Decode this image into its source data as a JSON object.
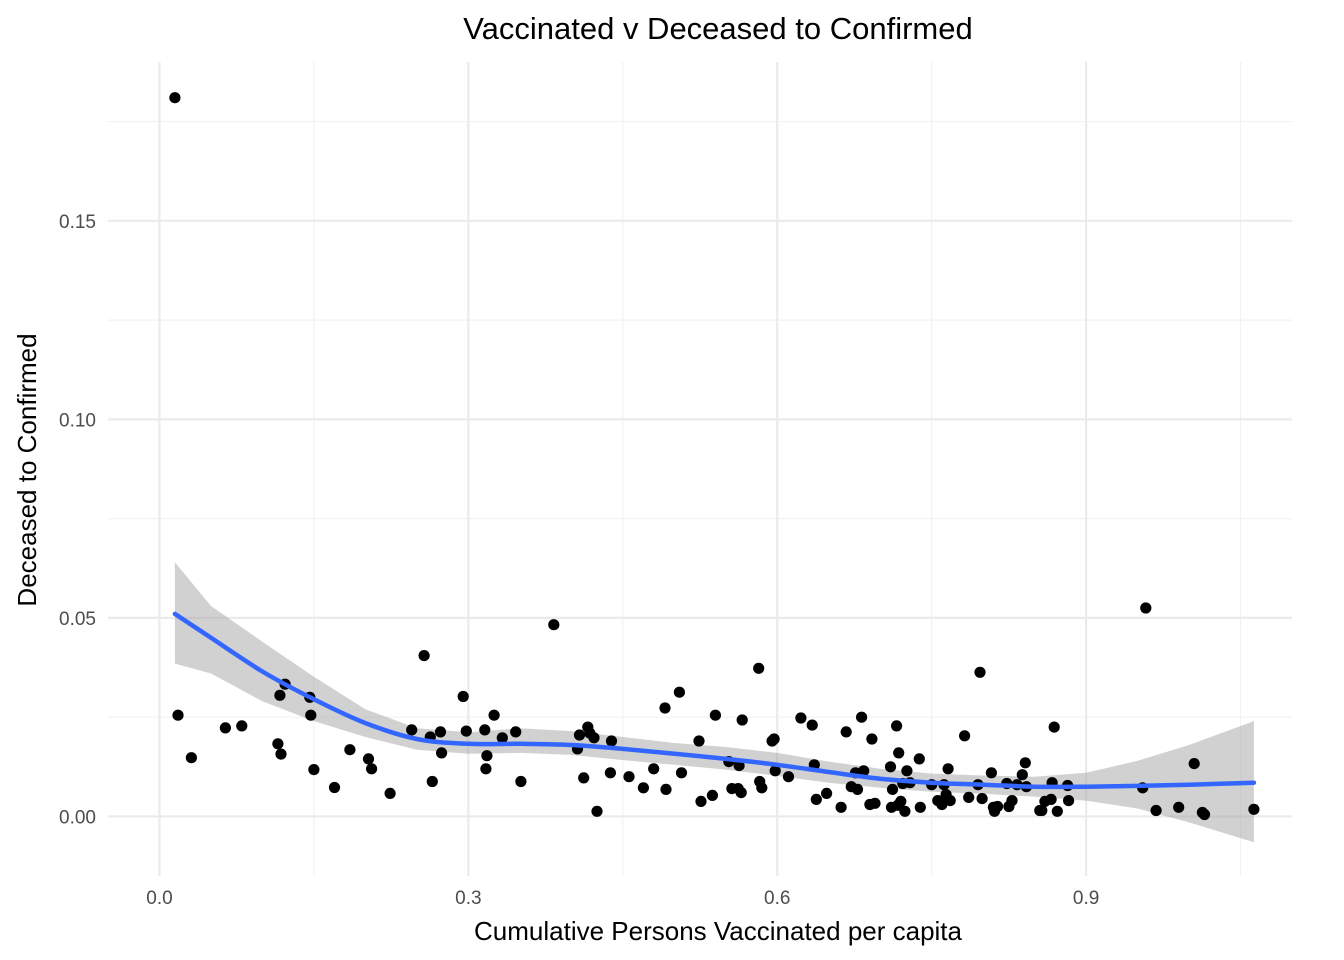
{
  "chart_data": {
    "type": "scatter",
    "title": "Vaccinated v Deceased to Confirmed",
    "xlabel": "Cumulative Persons Vaccinated per capita",
    "ylabel": "Deceased to Confirmed",
    "xlim": [
      -0.05,
      1.1
    ],
    "ylim": [
      -0.015,
      0.19
    ],
    "x_ticks": [
      0.0,
      0.3,
      0.6,
      0.9
    ],
    "x_tick_labels": [
      "0.0",
      "0.3",
      "0.6",
      "0.9"
    ],
    "y_ticks": [
      0.0,
      0.05,
      0.1,
      0.15
    ],
    "y_tick_labels": [
      "0.00",
      "0.05",
      "0.10",
      "0.15"
    ],
    "grid": true,
    "legend": "none",
    "colors": {
      "points": "#000000",
      "smooth": "#3366ff",
      "band": "#999999"
    },
    "series": [
      {
        "values": [
          [
            0.015,
            0.181
          ],
          [
            0.018,
            0.0255
          ],
          [
            0.031,
            0.0148
          ],
          [
            0.064,
            0.0223
          ],
          [
            0.08,
            0.0228
          ],
          [
            0.115,
            0.0183
          ],
          [
            0.117,
            0.0305
          ],
          [
            0.118,
            0.0157
          ],
          [
            0.122,
            0.0333
          ],
          [
            0.146,
            0.03
          ],
          [
            0.147,
            0.0255
          ],
          [
            0.15,
            0.0118
          ],
          [
            0.17,
            0.0073
          ],
          [
            0.185,
            0.0168
          ],
          [
            0.203,
            0.0145
          ],
          [
            0.206,
            0.012
          ],
          [
            0.224,
            0.0058
          ],
          [
            0.245,
            0.0218
          ],
          [
            0.257,
            0.0405
          ],
          [
            0.263,
            0.02
          ],
          [
            0.265,
            0.0088
          ],
          [
            0.273,
            0.0213
          ],
          [
            0.274,
            0.016
          ],
          [
            0.295,
            0.0302
          ],
          [
            0.298,
            0.0215
          ],
          [
            0.316,
            0.0218
          ],
          [
            0.317,
            0.012
          ],
          [
            0.318,
            0.0153
          ],
          [
            0.325,
            0.0255
          ],
          [
            0.333,
            0.0198
          ],
          [
            0.346,
            0.0213
          ],
          [
            0.351,
            0.0088
          ],
          [
            0.383,
            0.0483
          ],
          [
            0.406,
            0.017
          ],
          [
            0.408,
            0.0205
          ],
          [
            0.412,
            0.0097
          ],
          [
            0.416,
            0.0225
          ],
          [
            0.418,
            0.021
          ],
          [
            0.422,
            0.0198
          ],
          [
            0.425,
            0.0013
          ],
          [
            0.438,
            0.011
          ],
          [
            0.439,
            0.019
          ],
          [
            0.456,
            0.01
          ],
          [
            0.47,
            0.0072
          ],
          [
            0.48,
            0.012
          ],
          [
            0.491,
            0.0273
          ],
          [
            0.492,
            0.0068
          ],
          [
            0.505,
            0.0313
          ],
          [
            0.507,
            0.011
          ],
          [
            0.524,
            0.019
          ],
          [
            0.526,
            0.0038
          ],
          [
            0.537,
            0.0053
          ],
          [
            0.54,
            0.0255
          ],
          [
            0.553,
            0.0138
          ],
          [
            0.556,
            0.007
          ],
          [
            0.562,
            0.007
          ],
          [
            0.563,
            0.0128
          ],
          [
            0.565,
            0.006
          ],
          [
            0.566,
            0.0243
          ],
          [
            0.582,
            0.0373
          ],
          [
            0.583,
            0.0088
          ],
          [
            0.585,
            0.0072
          ],
          [
            0.595,
            0.019
          ],
          [
            0.597,
            0.0195
          ],
          [
            0.598,
            0.0115
          ],
          [
            0.611,
            0.01
          ],
          [
            0.623,
            0.0248
          ],
          [
            0.634,
            0.023
          ],
          [
            0.636,
            0.013
          ],
          [
            0.638,
            0.0043
          ],
          [
            0.648,
            0.0058
          ],
          [
            0.662,
            0.0023
          ],
          [
            0.667,
            0.0213
          ],
          [
            0.672,
            0.0075
          ],
          [
            0.676,
            0.011
          ],
          [
            0.678,
            0.0068
          ],
          [
            0.682,
            0.025
          ],
          [
            0.684,
            0.0115
          ],
          [
            0.69,
            0.003
          ],
          [
            0.692,
            0.0195
          ],
          [
            0.695,
            0.0033
          ],
          [
            0.71,
            0.0125
          ],
          [
            0.711,
            0.0023
          ],
          [
            0.712,
            0.0068
          ],
          [
            0.716,
            0.0228
          ],
          [
            0.717,
            0.0028
          ],
          [
            0.718,
            0.016
          ],
          [
            0.72,
            0.0038
          ],
          [
            0.722,
            0.0083
          ],
          [
            0.724,
            0.0013
          ],
          [
            0.726,
            0.0115
          ],
          [
            0.729,
            0.0085
          ],
          [
            0.738,
            0.0145
          ],
          [
            0.739,
            0.0023
          ],
          [
            0.75,
            0.008
          ],
          [
            0.756,
            0.004
          ],
          [
            0.76,
            0.003
          ],
          [
            0.762,
            0.008
          ],
          [
            0.764,
            0.0055
          ],
          [
            0.766,
            0.012
          ],
          [
            0.768,
            0.004
          ],
          [
            0.782,
            0.0203
          ],
          [
            0.786,
            0.0048
          ],
          [
            0.795,
            0.008
          ],
          [
            0.797,
            0.0363
          ],
          [
            0.799,
            0.0045
          ],
          [
            0.808,
            0.011
          ],
          [
            0.81,
            0.0023
          ],
          [
            0.811,
            0.0013
          ],
          [
            0.814,
            0.0025
          ],
          [
            0.823,
            0.0083
          ],
          [
            0.825,
            0.0025
          ],
          [
            0.828,
            0.004
          ],
          [
            0.833,
            0.008
          ],
          [
            0.838,
            0.0105
          ],
          [
            0.841,
            0.0135
          ],
          [
            0.842,
            0.0075
          ],
          [
            0.855,
            0.0015
          ],
          [
            0.857,
            0.0015
          ],
          [
            0.86,
            0.0038
          ],
          [
            0.866,
            0.0043
          ],
          [
            0.867,
            0.0085
          ],
          [
            0.869,
            0.0225
          ],
          [
            0.872,
            0.0013
          ],
          [
            0.882,
            0.0078
          ],
          [
            0.883,
            0.004
          ],
          [
            0.955,
            0.0072
          ],
          [
            0.958,
            0.0525
          ],
          [
            0.968,
            0.0015
          ],
          [
            0.99,
            0.0023
          ],
          [
            1.005,
            0.0133
          ],
          [
            1.013,
            0.001
          ],
          [
            1.015,
            0.0005
          ],
          [
            1.063,
            0.0018
          ]
        ]
      }
    ],
    "smooth": {
      "x": [
        0.015,
        0.05,
        0.1,
        0.15,
        0.2,
        0.25,
        0.3,
        0.35,
        0.4,
        0.45,
        0.5,
        0.55,
        0.6,
        0.65,
        0.7,
        0.75,
        0.8,
        0.85,
        0.9,
        0.95,
        1.0,
        1.063
      ],
      "y": [
        0.051,
        0.045,
        0.0365,
        0.0295,
        0.0235,
        0.0195,
        0.0183,
        0.0183,
        0.018,
        0.017,
        0.0158,
        0.0145,
        0.013,
        0.0112,
        0.0095,
        0.0085,
        0.008,
        0.0075,
        0.0075,
        0.0077,
        0.008,
        0.0085
      ],
      "upper": [
        0.064,
        0.053,
        0.044,
        0.0352,
        0.027,
        0.0222,
        0.0212,
        0.0222,
        0.0215,
        0.02,
        0.0185,
        0.0175,
        0.016,
        0.0138,
        0.012,
        0.0108,
        0.0103,
        0.01,
        0.011,
        0.014,
        0.018,
        0.024
      ],
      "lower": [
        0.0385,
        0.036,
        0.029,
        0.024,
        0.02,
        0.0168,
        0.0158,
        0.016,
        0.0155,
        0.0142,
        0.013,
        0.0118,
        0.0102,
        0.0085,
        0.0072,
        0.0062,
        0.0057,
        0.005,
        0.004,
        0.002,
        -0.0015,
        -0.0065
      ]
    }
  }
}
